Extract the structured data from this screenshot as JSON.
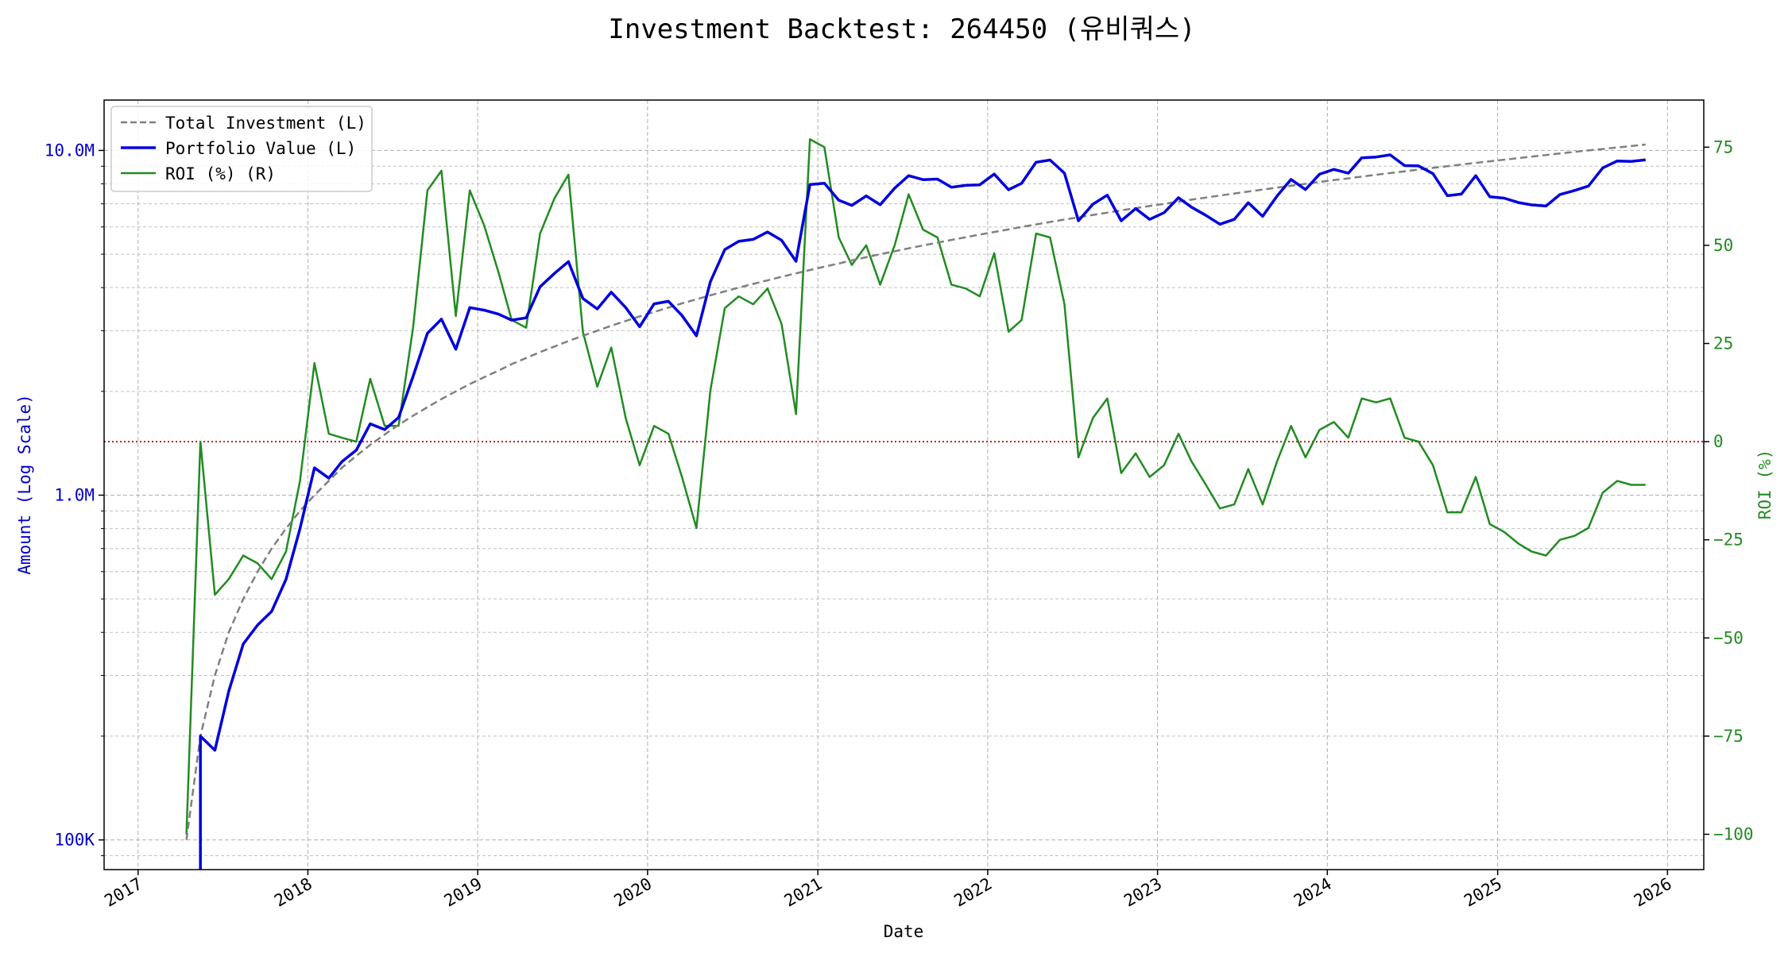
{
  "chart_data": {
    "type": "line",
    "title": "Investment Backtest: 264450 (유비쿼스)",
    "xlabel": "Date",
    "ylabel_left": "Amount (Log Scale)",
    "ylabel_right": "ROI (%)",
    "y_left_scale": "log",
    "y_left_range": [
      82000,
      14000000
    ],
    "y_right_range": [
      -109,
      87
    ],
    "x_range": [
      "2016-10-20",
      "2026-03-20"
    ],
    "x_ticks": [
      {
        "date": "2017-01-01",
        "label": "2017"
      },
      {
        "date": "2018-01-01",
        "label": "2018"
      },
      {
        "date": "2019-01-01",
        "label": "2019"
      },
      {
        "date": "2020-01-01",
        "label": "2020"
      },
      {
        "date": "2021-01-01",
        "label": "2021"
      },
      {
        "date": "2022-01-01",
        "label": "2022"
      },
      {
        "date": "2023-01-01",
        "label": "2023"
      },
      {
        "date": "2024-01-01",
        "label": "2024"
      },
      {
        "date": "2025-01-01",
        "label": "2025"
      },
      {
        "date": "2026-01-01",
        "label": "2026"
      }
    ],
    "y_left_ticks": [
      {
        "value": 100000,
        "label": "100K"
      },
      {
        "value": 1000000,
        "label": "1.0M"
      },
      {
        "value": 10000000,
        "label": "10.0M"
      }
    ],
    "y_right_ticks": [
      {
        "value": -100,
        "label": "−100"
      },
      {
        "value": -75,
        "label": "−75"
      },
      {
        "value": -50,
        "label": "−50"
      },
      {
        "value": -25,
        "label": "−25"
      },
      {
        "value": 0,
        "label": "0"
      },
      {
        "value": 25,
        "label": "25"
      },
      {
        "value": 50,
        "label": "50"
      },
      {
        "value": 75,
        "label": "75"
      }
    ],
    "grid": true,
    "zero_line": 0,
    "legend_position": "top-left",
    "colors": {
      "investment": "#808080",
      "portfolio": "#0000dd",
      "roi": "#228b22",
      "zero_line": "#b22222",
      "left_axis_text": "#0000cc",
      "right_axis_text": "#228b22"
    },
    "x": [
      "2017-04",
      "2017-05",
      "2017-06",
      "2017-07",
      "2017-08",
      "2017-09",
      "2017-10",
      "2017-11",
      "2017-12",
      "2018-01",
      "2018-02",
      "2018-03",
      "2018-04",
      "2018-05",
      "2018-06",
      "2018-07",
      "2018-08",
      "2018-09",
      "2018-10",
      "2018-11",
      "2018-12",
      "2019-01",
      "2019-02",
      "2019-03",
      "2019-04",
      "2019-05",
      "2019-06",
      "2019-07",
      "2019-08",
      "2019-09",
      "2019-10",
      "2019-11",
      "2019-12",
      "2020-01",
      "2020-02",
      "2020-03",
      "2020-04",
      "2020-05",
      "2020-06",
      "2020-07",
      "2020-08",
      "2020-09",
      "2020-10",
      "2020-11",
      "2020-12",
      "2021-01",
      "2021-02",
      "2021-03",
      "2021-04",
      "2021-05",
      "2021-06",
      "2021-07",
      "2021-08",
      "2021-09",
      "2021-10",
      "2021-11",
      "2021-12",
      "2022-01",
      "2022-02",
      "2022-03",
      "2022-04",
      "2022-05",
      "2022-06",
      "2022-07",
      "2022-08",
      "2022-09",
      "2022-10",
      "2022-11",
      "2022-12",
      "2023-01",
      "2023-02",
      "2023-03",
      "2023-04",
      "2023-05",
      "2023-06",
      "2023-07",
      "2023-08",
      "2023-09",
      "2023-10",
      "2023-11",
      "2023-12",
      "2024-01",
      "2024-02",
      "2024-03",
      "2024-04",
      "2024-05",
      "2024-06",
      "2024-07",
      "2024-08",
      "2024-09",
      "2024-10",
      "2024-11",
      "2024-12",
      "2025-01",
      "2025-02",
      "2025-03",
      "2025-04",
      "2025-05",
      "2025-06",
      "2025-07",
      "2025-08",
      "2025-09",
      "2025-10",
      "2025-11"
    ],
    "series": [
      {
        "name": "Total Investment (L)",
        "style": "dashed",
        "values": [
          100000,
          200000,
          300000,
          400000,
          500000,
          600000,
          700000,
          800000,
          900000,
          1000000,
          1100000,
          1200000,
          1300000,
          1400000,
          1500000,
          1600000,
          1700000,
          1800000,
          1900000,
          2000000,
          2100000,
          2200000,
          2300000,
          2400000,
          2500000,
          2600000,
          2700000,
          2800000,
          2900000,
          3000000,
          3100000,
          3200000,
          3300000,
          3400000,
          3500000,
          3600000,
          3700000,
          3800000,
          3900000,
          4000000,
          4100000,
          4200000,
          4300000,
          4400000,
          4500000,
          4600000,
          4700000,
          4800000,
          4900000,
          5000000,
          5100000,
          5200000,
          5300000,
          5400000,
          5500000,
          5600000,
          5700000,
          5800000,
          5900000,
          6000000,
          6100000,
          6200000,
          6300000,
          6400000,
          6500000,
          6600000,
          6700000,
          6800000,
          6900000,
          7000000,
          7100000,
          7200000,
          7300000,
          7400000,
          7500000,
          7600000,
          7700000,
          7800000,
          7900000,
          8000000,
          8100000,
          8200000,
          8300000,
          8400000,
          8500000,
          8600000,
          8700000,
          8800000,
          8900000,
          9000000,
          9100000,
          9200000,
          9300000,
          9400000,
          9500000,
          9600000,
          9700000,
          9800000,
          9900000,
          10000000,
          10100000,
          10200000,
          10300000,
          10400000
        ]
      },
      {
        "name": "Portfolio Value (L)",
        "style": "solid",
        "values": [
          null,
          200000,
          182000,
          270000,
          370000,
          420000,
          460000,
          570000,
          800000,
          1200000,
          1120000,
          1250000,
          1350000,
          1610000,
          1550000,
          1680000,
          2210000,
          2950000,
          3240000,
          2650000,
          3500000,
          3440000,
          3350000,
          3220000,
          3270000,
          4020000,
          4400000,
          4760000,
          3720000,
          3470000,
          3880000,
          3500000,
          3080000,
          3590000,
          3650000,
          3320000,
          2900000,
          4160000,
          5160000,
          5450000,
          5520000,
          5800000,
          5490000,
          4770000,
          7960000,
          8030000,
          7170000,
          6930000,
          7380000,
          6960000,
          7770000,
          8450000,
          8230000,
          8260000,
          7820000,
          7920000,
          7950000,
          8540000,
          7690000,
          8030000,
          9240000,
          9380000,
          8590000,
          6250000,
          6980000,
          7420000,
          6250000,
          6780000,
          6310000,
          6600000,
          7290000,
          6850000,
          6480000,
          6110000,
          6310000,
          7050000,
          6440000,
          7380000,
          8240000,
          7700000,
          8530000,
          8810000,
          8590000,
          9520000,
          9570000,
          9710000,
          9040000,
          9020000,
          8560000,
          7390000,
          7470000,
          8450000,
          7340000,
          7270000,
          7060000,
          6950000,
          6900000,
          7450000,
          7650000,
          7880000,
          8900000,
          9320000,
          9290000,
          9390000
        ]
      },
      {
        "name": "ROI (%) (R)",
        "style": "solid",
        "values": [
          -100,
          0,
          -39,
          -35,
          -29,
          -31,
          -35,
          -28,
          -10,
          20,
          2,
          1,
          0,
          16,
          4,
          4,
          29,
          64,
          69,
          32,
          64,
          55,
          43,
          31,
          29,
          53,
          62,
          68,
          28,
          14,
          24,
          6,
          -6,
          4,
          2,
          -9,
          -22,
          13,
          34,
          37,
          35,
          39,
          30,
          7,
          77,
          75,
          52,
          45,
          50,
          40,
          50,
          63,
          54,
          52,
          40,
          39,
          37,
          48,
          28,
          31,
          53,
          52,
          35,
          -4,
          6,
          11,
          -8,
          -3,
          -9,
          -6,
          2,
          -5,
          -11,
          -17,
          -16,
          -7,
          -16,
          -5,
          4,
          -4,
          3,
          5,
          1,
          11,
          10,
          11,
          1,
          0,
          -6,
          -18,
          -18,
          -9,
          -21,
          -23,
          -26,
          -28,
          -29,
          -25,
          -24,
          -22,
          -13,
          -10,
          -11,
          -11
        ]
      }
    ]
  }
}
